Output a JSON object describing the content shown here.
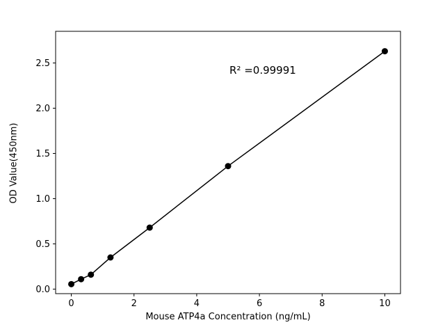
{
  "chart_data": {
    "type": "scatter",
    "line": true,
    "x": [
      0,
      0.3125,
      0.625,
      1.25,
      2.5,
      5,
      10
    ],
    "y": [
      0.055,
      0.11,
      0.16,
      0.35,
      0.68,
      1.36,
      2.63
    ],
    "xlabel": "Mouse ATP4a Concentration (ng/mL)",
    "ylabel": "OD Value(450nm)",
    "annotation": "R² =0.99991",
    "xlim": [
      -0.5,
      10.5
    ],
    "ylim": [
      -0.05,
      2.85
    ],
    "xticks": {
      "values": [
        0,
        2,
        4,
        6,
        8,
        10
      ],
      "labels": [
        "0",
        "2",
        "4",
        "6",
        "8",
        "10"
      ]
    },
    "yticks": {
      "values": [
        0,
        0.5,
        1.0,
        1.5,
        2.0,
        2.5
      ],
      "labels": [
        "0.0",
        "0.5",
        "1.0",
        "1.5",
        "2.0",
        "2.5"
      ]
    },
    "line_color": "#000000",
    "marker_color": "#000000",
    "background": "#ffffff",
    "grid": false,
    "legend": "none"
  }
}
